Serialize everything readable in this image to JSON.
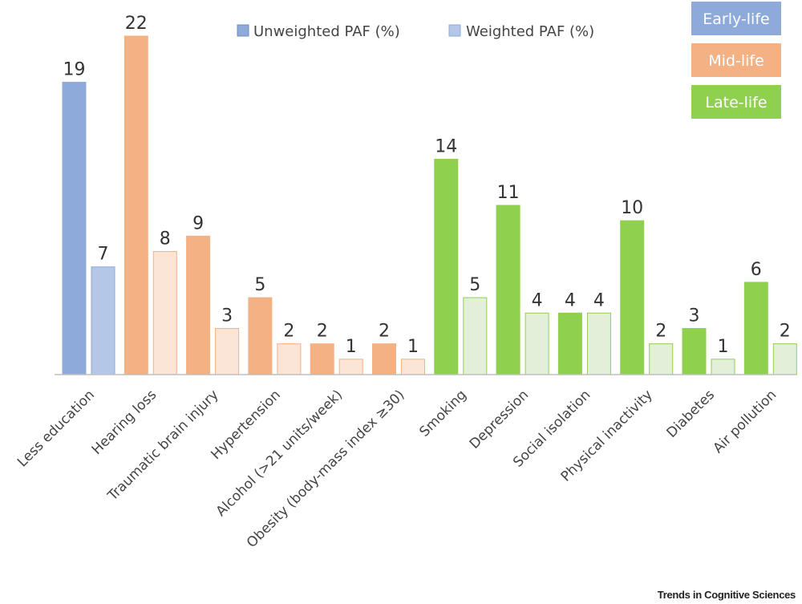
{
  "chart_data": {
    "type": "bar",
    "categories": [
      "Less education",
      "Hearing loss",
      "Traumatic brain injury",
      "Hypertension",
      "Alcohol (>21 units/week)",
      "Obesity (body-mass index ≥30)",
      "Smoking",
      "Depression",
      "Social isolation",
      "Physical inactivity",
      "Diabetes",
      "Air pollution"
    ],
    "category_stage": [
      "early",
      "mid",
      "mid",
      "mid",
      "mid",
      "mid",
      "late",
      "late",
      "late",
      "late",
      "late",
      "late"
    ],
    "series": [
      {
        "name": "Unweighted PAF (%)",
        "values": [
          19,
          22,
          9,
          5,
          2,
          2,
          14,
          11,
          4,
          10,
          3,
          6
        ]
      },
      {
        "name": "Weighted PAF (%)",
        "values": [
          7,
          8,
          3,
          2,
          1,
          1,
          5,
          4,
          4,
          2,
          1,
          2
        ]
      }
    ],
    "data_labels": {
      "unweighted": [
        "19",
        "22",
        "9",
        "5",
        "2",
        "2",
        "14",
        "11",
        "4",
        "10",
        "3",
        "6"
      ],
      "weighted": [
        "7",
        "8",
        "3",
        "2",
        "1",
        "1",
        "5",
        "4",
        "4",
        "2",
        "1",
        "2"
      ]
    },
    "stages": [
      {
        "key": "early",
        "label": "Early-life",
        "color": "#8eaadb",
        "light": "#b4c7e7"
      },
      {
        "key": "mid",
        "label": "Mid-life",
        "color": "#f4b183",
        "light": "#fbe5d6"
      },
      {
        "key": "late",
        "label": "Late-life",
        "color": "#8fd14f",
        "light": "#e2f0d9"
      }
    ],
    "legend": {
      "position": "top-center",
      "unweighted_color": "#8eaadb",
      "weighted_color": "#b4c7e7"
    },
    "title": "",
    "xlabel": "",
    "ylabel": "",
    "ylim": [
      0,
      22
    ],
    "grid": false
  },
  "credit": "Trends in Cognitive Sciences"
}
